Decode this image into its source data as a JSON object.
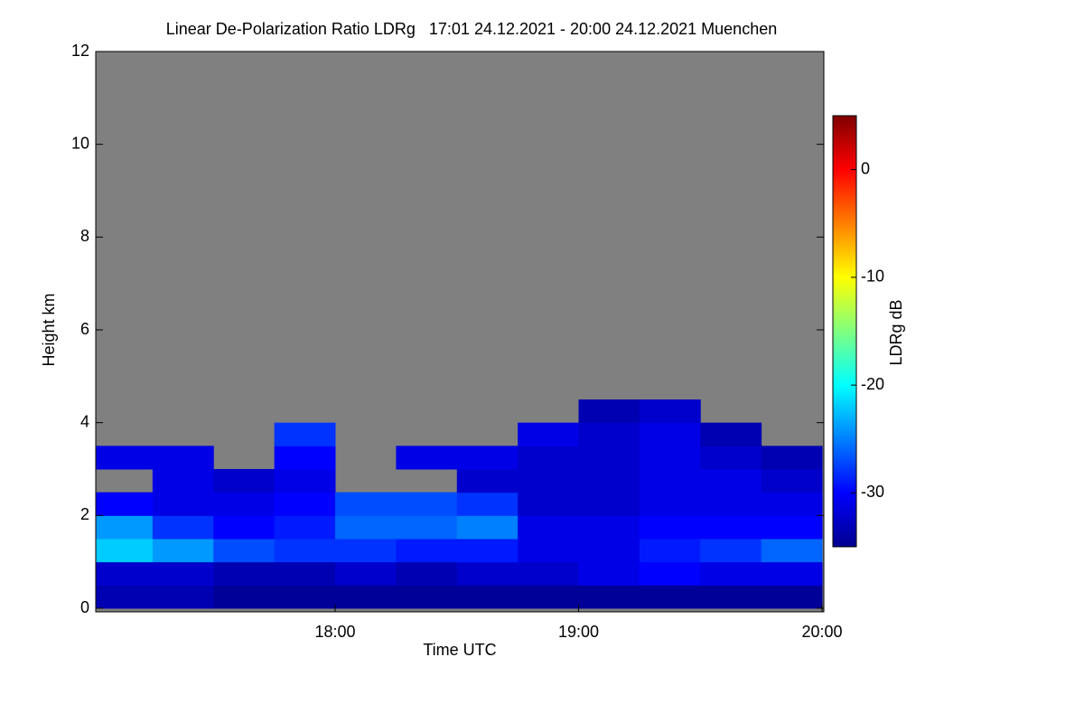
{
  "chart_data": {
    "type": "heatmap",
    "title": "Linear De-Polarization Ratio LDRg   17:01 24.12.2021 - 20:00 24.12.2021 Muenchen",
    "x_label": "Time UTC",
    "y_label": "Height km",
    "colorbar_label": "LDRg dB",
    "colormap": "jet",
    "missing_color": "#808080",
    "xlim": [
      17.0167,
      20.0
    ],
    "xticks": [
      {
        "value": 18,
        "label": "18:00"
      },
      {
        "value": 19,
        "label": "19:00"
      },
      {
        "value": 20,
        "label": "20:00"
      }
    ],
    "ylim": [
      0,
      12
    ],
    "yticks": [
      0,
      2,
      4,
      6,
      8,
      10,
      12
    ],
    "zlim": [
      -35,
      5
    ],
    "zticks": [
      0,
      -10,
      -20,
      -30
    ],
    "xbins": [
      17.0167,
      17.25,
      17.5,
      17.75,
      18.0,
      18.25,
      18.5,
      18.75,
      19.0,
      19.25,
      19.5,
      19.75,
      20.0
    ],
    "ybins": [
      0,
      0.5,
      1,
      1.5,
      2,
      2.5,
      3,
      3.5,
      4,
      4.5,
      5
    ],
    "z": [
      [
        -33,
        -33,
        -34,
        -34,
        -34,
        -34,
        -34,
        -34,
        -34,
        -34,
        -34,
        -34
      ],
      [
        -32,
        -32,
        -33,
        -33,
        -32,
        -33,
        -32,
        -32,
        -31,
        -30,
        -31,
        -31
      ],
      [
        -22,
        -24,
        -27,
        -28,
        -28,
        -29,
        -29,
        -31,
        -31,
        -29,
        -28,
        -26
      ],
      [
        -24,
        -28,
        -30,
        -29,
        -26,
        -26,
        -25,
        -31,
        -31,
        -30,
        -30,
        -30
      ],
      [
        -30,
        -31,
        -31,
        -30,
        -27,
        -27,
        -28,
        -32,
        -32,
        -31,
        -31,
        -31
      ],
      [
        null,
        -31,
        -32,
        -31,
        null,
        null,
        -32,
        -32,
        -32,
        -31,
        -31,
        -32
      ],
      [
        -31,
        -31,
        null,
        -30,
        null,
        -31,
        -31,
        -32,
        -32,
        -31,
        -32,
        -33
      ],
      [
        null,
        null,
        null,
        -28,
        null,
        null,
        null,
        -31,
        -32,
        -31,
        -33,
        null
      ],
      [
        null,
        null,
        null,
        null,
        null,
        null,
        null,
        null,
        -33,
        -32,
        null,
        null
      ],
      [
        null,
        null,
        null,
        null,
        null,
        null,
        null,
        null,
        null,
        null,
        null,
        null
      ]
    ]
  }
}
